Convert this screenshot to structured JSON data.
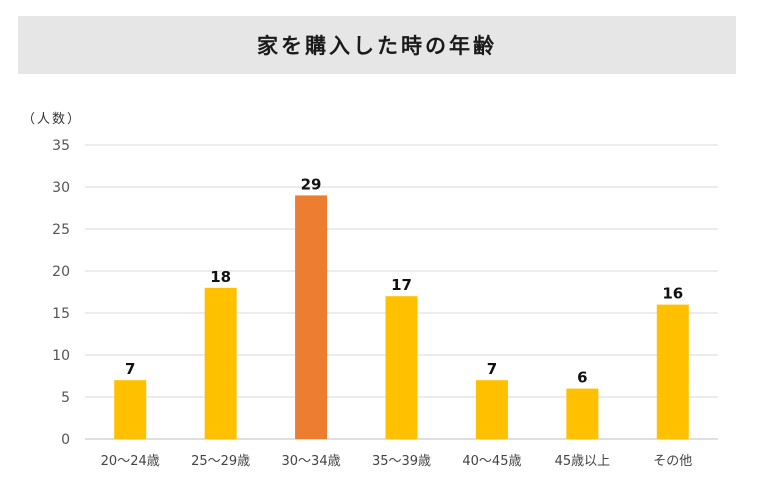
{
  "chart_data": {
    "type": "bar",
    "title": "家を購入した時の年齢",
    "ylabel": "（人数）",
    "xlabel": "",
    "categories": [
      "20～24歳",
      "25～29歳",
      "30～34歳",
      "35～39歳",
      "40～45歳",
      "45歳以上",
      "その他"
    ],
    "values": [
      7,
      18,
      29,
      17,
      7,
      6,
      16
    ],
    "ylim": [
      0,
      35
    ],
    "yticks": [
      0,
      5,
      10,
      15,
      20,
      25,
      30,
      35
    ],
    "grid": true,
    "legend": "none",
    "colors": {
      "default": "#ffc000",
      "highlight": "#ed7d31",
      "highlight_index": 2
    }
  }
}
